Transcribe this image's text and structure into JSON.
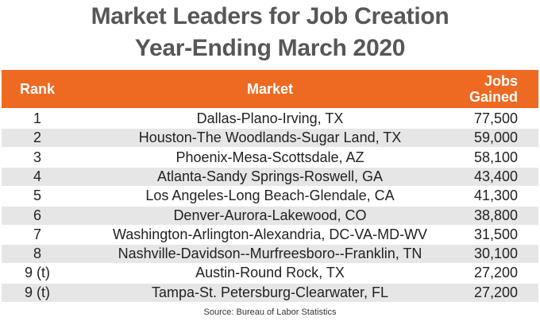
{
  "title": [
    "Market Leaders for Job Creation",
    "Year-Ending March 2020"
  ],
  "table": {
    "header": [
      "Rank",
      "Market",
      "Jobs Gained"
    ],
    "rows": [
      [
        "1",
        "Dallas-Plano-Irving, TX",
        "77,500"
      ],
      [
        "2",
        "Houston-The Woodlands-Sugar Land, TX",
        "59,000"
      ],
      [
        "3",
        "Phoenix-Mesa-Scottsdale, AZ",
        "58,100"
      ],
      [
        "4",
        "Atlanta-Sandy Springs-Roswell, GA",
        "43,400"
      ],
      [
        "5",
        "Los Angeles-Long Beach-Glendale, CA",
        "41,300"
      ],
      [
        "6",
        "Denver-Aurora-Lakewood, CO",
        "38,800"
      ],
      [
        "7",
        "Washington-Arlington-Alexandria, DC-VA-MD-WV",
        "31,500"
      ],
      [
        "8",
        "Nashville-Davidson--Murfreesboro--Franklin, TN",
        "30,100"
      ],
      [
        "9 (t)",
        "Austin-Round Rock, TX",
        "27,200"
      ],
      [
        "9 (t)",
        "Tampa-St. Petersburg-Clearwater, FL",
        "27,200"
      ]
    ]
  },
  "source": "Source: Bureau of Labor Statistics"
}
